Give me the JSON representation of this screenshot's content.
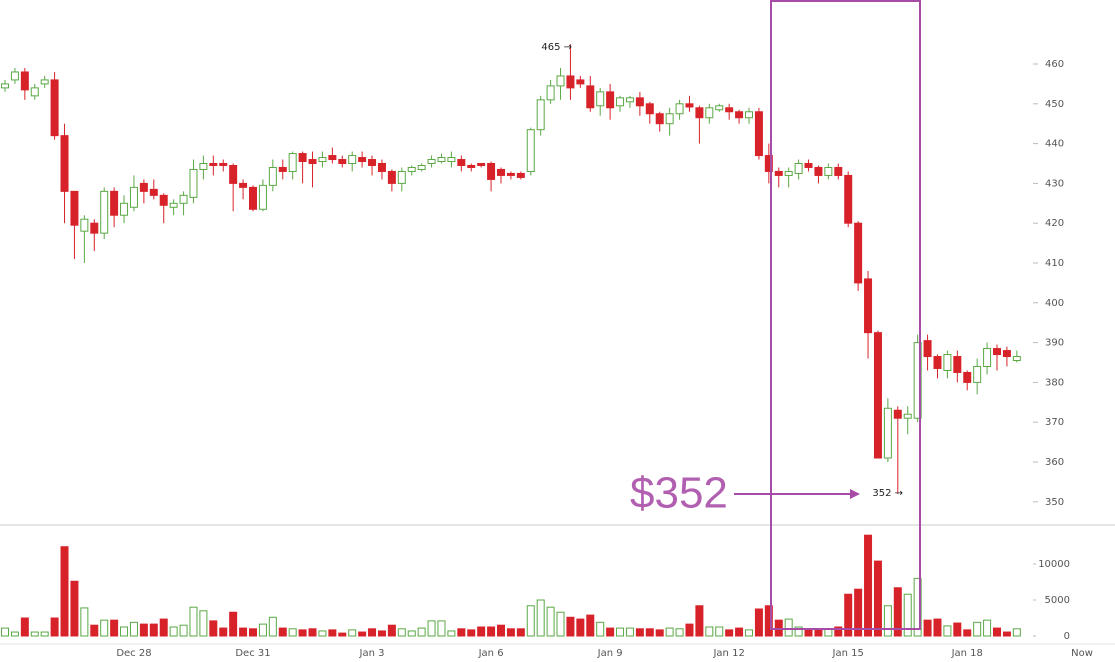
{
  "chart_data": {
    "type": "candlestick",
    "categories": [
      null,
      null,
      null,
      null,
      null,
      null,
      null,
      null,
      null,
      null,
      null,
      null,
      null,
      "Dec 28",
      null,
      null,
      null,
      null,
      null,
      null,
      null,
      null,
      null,
      null,
      null,
      "Dec 31",
      null,
      null,
      null,
      null,
      null,
      null,
      null,
      null,
      null,
      null,
      null,
      "Jan 3",
      null,
      null,
      null,
      null,
      null,
      null,
      null,
      null,
      null,
      null,
      null,
      "Jan 6",
      null,
      null,
      null,
      null,
      null,
      null,
      null,
      null,
      null,
      null,
      null,
      "Jan 9",
      null,
      null,
      null,
      null,
      null,
      null,
      null,
      null,
      null,
      null,
      null,
      "Jan 12",
      null,
      null,
      null,
      null,
      null,
      null,
      null,
      null,
      null,
      null,
      null,
      "Jan 15",
      null,
      null,
      null,
      null,
      null,
      null,
      null,
      null,
      null,
      null,
      null,
      "Jan 18",
      null,
      null,
      null,
      null,
      null
    ],
    "x_end_label": "Now",
    "open": [
      454,
      456,
      458,
      452,
      455,
      456,
      442,
      428,
      418,
      420,
      417.5,
      428,
      422,
      424,
      430,
      428.5,
      427,
      424,
      425,
      426.5,
      433.5,
      435,
      435,
      434.5,
      430,
      429,
      423.5,
      429.5,
      434,
      433,
      437.5,
      436,
      435.5,
      437,
      436,
      435,
      436.5,
      436,
      435,
      433,
      430,
      433,
      433.5,
      435,
      435.5,
      435.5,
      436,
      434.5,
      435,
      435,
      433.5,
      432.5,
      432.5,
      433,
      443.5,
      451,
      454.5,
      457,
      456,
      454.5,
      449.5,
      453,
      449.5,
      450.5,
      451.5,
      450,
      447.5,
      445,
      447.5,
      450,
      449,
      446.5,
      448.5,
      449,
      448,
      446.5,
      448,
      437,
      433,
      432,
      432.5,
      435,
      434,
      432,
      434,
      432,
      420,
      406,
      392.5,
      361,
      373,
      371,
      371,
      390.5,
      386.5,
      383,
      386.5,
      382.5,
      380,
      384,
      388.5,
      388,
      385.5
    ],
    "high": [
      456,
      459,
      459,
      455,
      457,
      458,
      445,
      428,
      422,
      421,
      429,
      429,
      427,
      432,
      431,
      431,
      427.5,
      426,
      428,
      436,
      437,
      437,
      436,
      435,
      431,
      429.5,
      431,
      436,
      436,
      438,
      438,
      438,
      438,
      439,
      437,
      438,
      438,
      437,
      436,
      433.5,
      434,
      434.5,
      435,
      437,
      437.5,
      438,
      437,
      435,
      435,
      435.5,
      434,
      433,
      433,
      444,
      452,
      456,
      459,
      465,
      457,
      457,
      454,
      455,
      452,
      452,
      453,
      450.5,
      448,
      449,
      451,
      452,
      449.5,
      450,
      450,
      450,
      448.5,
      449,
      449,
      440,
      434,
      434,
      436,
      436,
      434.5,
      435,
      435,
      433,
      420.5,
      408,
      393,
      376,
      374,
      374,
      392,
      392,
      387,
      388,
      388,
      383,
      386,
      390,
      389.5,
      389,
      388
    ],
    "low": [
      453,
      455,
      451,
      451,
      454,
      441,
      420,
      411,
      410,
      413,
      416,
      419,
      420,
      423,
      425,
      426,
      420,
      422,
      422,
      425,
      431,
      432,
      433,
      423,
      426,
      423,
      423,
      428,
      431,
      431,
      430,
      429,
      434,
      435,
      434,
      433,
      434,
      432,
      431,
      428,
      428,
      432,
      433,
      434,
      435,
      434,
      433,
      433,
      434,
      428,
      430,
      431,
      431,
      432,
      442,
      450,
      451,
      451,
      454,
      448,
      447,
      446,
      448,
      449,
      447,
      445,
      443,
      442,
      446,
      448,
      440,
      445,
      448,
      446,
      445,
      445,
      436,
      430,
      429,
      429,
      431,
      433,
      430,
      431,
      431,
      419,
      403,
      386,
      361,
      360,
      352,
      367,
      370,
      383,
      381,
      381,
      380,
      378,
      377,
      382,
      383,
      384,
      385
    ],
    "close": [
      455,
      458,
      453.5,
      454,
      456,
      442,
      428,
      419.5,
      421,
      417.5,
      428,
      422,
      425,
      429,
      428,
      427,
      424.5,
      425,
      427,
      433.5,
      435,
      434.5,
      434.5,
      430,
      429,
      423.5,
      429.5,
      434,
      433,
      437.5,
      435.5,
      435,
      436.5,
      436,
      435,
      437,
      435.5,
      434.5,
      433,
      430,
      433,
      434,
      434.5,
      436,
      436.5,
      436.5,
      434.5,
      434,
      434.5,
      431,
      432,
      432,
      431.5,
      443.5,
      451,
      454.5,
      457,
      454,
      455,
      449,
      453,
      449,
      451.5,
      451.5,
      449.5,
      447.5,
      445,
      447.5,
      450,
      449.2,
      446.5,
      449,
      449.5,
      448,
      446.5,
      448,
      437,
      433,
      432,
      433,
      435,
      434,
      432,
      434,
      432,
      420,
      405,
      392.5,
      361,
      373.5,
      371,
      372,
      390,
      386.5,
      383.5,
      387,
      382.5,
      380,
      384,
      388.5,
      387,
      386.5,
      386.5
    ],
    "volume": [
      1100,
      550,
      2500,
      550,
      550,
      2500,
      12400,
      7600,
      3900,
      1500,
      2200,
      2200,
      1250,
      1900,
      1650,
      1650,
      2350,
      1250,
      1500,
      4000,
      3500,
      2100,
      1100,
      3300,
      1100,
      1000,
      1650,
      2600,
      1100,
      1000,
      850,
      1000,
      700,
      850,
      400,
      850,
      550,
      1000,
      700,
      1500,
      1000,
      700,
      1100,
      2100,
      2100,
      700,
      1000,
      850,
      1250,
      1250,
      1500,
      1000,
      1000,
      4200,
      5000,
      4000,
      3300,
      2600,
      2350,
      2900,
      1900,
      1100,
      1100,
      1100,
      1000,
      1000,
      850,
      1100,
      1000,
      1650,
      4200,
      1250,
      1250,
      850,
      1100,
      850,
      3750,
      4200,
      2200,
      2350,
      1250,
      850,
      850,
      1000,
      1250,
      5800,
      6500,
      14000,
      10400,
      4200,
      6700,
      5800,
      8000,
      2200,
      2350,
      1400,
      1800,
      850,
      1900,
      2200,
      1100,
      550,
      1000
    ],
    "up_color": "#5aa845",
    "down_color": "#d8222a",
    "ylim": [
      345,
      475
    ],
    "yticks": [
      350,
      360,
      370,
      380,
      390,
      400,
      410,
      420,
      430,
      440,
      450,
      460
    ],
    "volume_ylim": [
      0,
      15000
    ],
    "volume_yticks": [
      0,
      5000,
      10000
    ],
    "annotations": [
      "465 →",
      "352 →",
      "$352"
    ]
  }
}
